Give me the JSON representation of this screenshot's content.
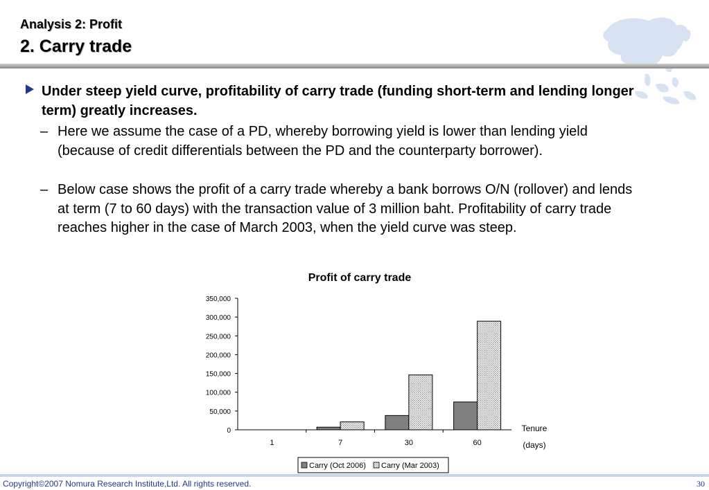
{
  "header": {
    "subtitle": "Analysis 2: Profit",
    "title": "2. Carry trade"
  },
  "content": {
    "main_bullet": "Under steep yield curve, profitability of carry trade (funding short-term and lending longer term) greatly increases.",
    "sub_bullets": [
      {
        "dash": "–",
        "text": "Here we assume the case of a PD, whereby borrowing yield is lower than lending yield (because of credit differentials between the PD and the counterparty borrower)."
      },
      {
        "dash": "–",
        "text": "Below case shows the profit of a carry trade whereby a bank borrows O/N (rollover) and lends at term (7 to 60 days) with the transaction value of 3 million baht. Profitability of carry trade reaches higher in the case of March 2003, when the yield curve was steep."
      }
    ]
  },
  "chart_data": {
    "type": "bar",
    "title": "Profit of carry trade",
    "xlabel_line1": "Tenure",
    "xlabel_line2": "(days)",
    "ylabel": "",
    "categories": [
      "1",
      "7",
      "30",
      "60"
    ],
    "ylim": [
      0,
      350000
    ],
    "yticks": [
      0,
      50000,
      100000,
      150000,
      200000,
      250000,
      300000,
      350000
    ],
    "ytick_labels": [
      "0",
      "50,000",
      "100,000",
      "150,000",
      "200,000",
      "250,000",
      "300,000",
      "350,000"
    ],
    "legend_position": "bottom",
    "series": [
      {
        "name": "Carry (Oct 2006)",
        "values": [
          0,
          7000,
          38000,
          74000
        ],
        "color": "#808080"
      },
      {
        "name": "Carry  (Mar 2003)",
        "values": [
          0,
          21000,
          146000,
          289000
        ],
        "color": "#d9d9d9",
        "pattern": "dotted"
      }
    ]
  },
  "footer": {
    "copyright": "Copyright©2007 Nomura Research Institute,Ltd. All rights reserved.",
    "page": "30"
  },
  "icons": {
    "header_map": "asia-map-icon",
    "bullet": "triangle-bullet-icon"
  }
}
